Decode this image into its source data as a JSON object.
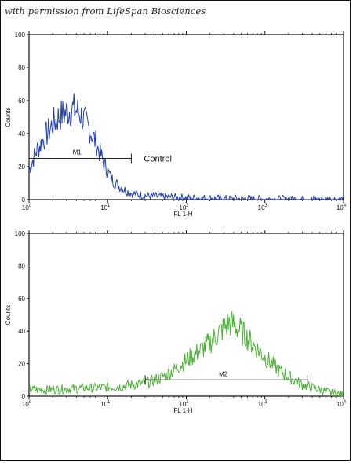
{
  "credit_text": "with permission from LifeSpan Biosciences",
  "chart_data": [
    {
      "type": "line",
      "title": "",
      "xlabel": "FL 1-H",
      "ylabel": "Counts",
      "xscale": "log",
      "xlim": [
        1,
        10000
      ],
      "ylim": [
        0,
        100
      ],
      "x_ticks": [
        {
          "base": "10",
          "exp": "0"
        },
        {
          "base": "10",
          "exp": "1"
        },
        {
          "base": "10",
          "exp": "2"
        },
        {
          "base": "10",
          "exp": "3"
        },
        {
          "base": "10",
          "exp": "4"
        }
      ],
      "y_ticks": [
        "0",
        "20",
        "40",
        "60",
        "80",
        "100"
      ],
      "line_color": "#1f3ea8",
      "series": [
        {
          "x": [
            1.0,
            1.2,
            1.5,
            1.8,
            2.0,
            2.5,
            3.0,
            3.5,
            4.0,
            4.5,
            5.0,
            6.0,
            7.0,
            8.0,
            9.0,
            10.0,
            12.0,
            15.0,
            18.0,
            20.0,
            25.0,
            30.0,
            40.0,
            50.0,
            70.0,
            100.0,
            150.0,
            200.0,
            300.0,
            500.0,
            1000.0,
            2000.0,
            5000.0,
            10000.0
          ],
          "y": [
            18,
            28,
            36,
            42,
            46,
            51,
            53,
            55,
            54,
            52,
            48,
            42,
            35,
            28,
            22,
            17,
            11,
            7,
            5,
            4,
            3,
            2.5,
            2,
            1.8,
            1.5,
            1.2,
            1.0,
            0.8,
            0.6,
            0.5,
            0.4,
            0.3,
            0.2,
            0.2
          ]
        }
      ],
      "marker": {
        "label": "M1",
        "x_start": 1.0,
        "x_end": 20.0,
        "y": 25
      },
      "annotation": "Control"
    },
    {
      "type": "line",
      "title": "",
      "xlabel": "FL 1-H",
      "ylabel": "Counts",
      "xscale": "log",
      "xlim": [
        1,
        10000
      ],
      "ylim": [
        0,
        100
      ],
      "x_ticks": [
        {
          "base": "10",
          "exp": "0"
        },
        {
          "base": "10",
          "exp": "1"
        },
        {
          "base": "10",
          "exp": "2"
        },
        {
          "base": "10",
          "exp": "3"
        },
        {
          "base": "10",
          "exp": "4"
        }
      ],
      "y_ticks": [
        "0",
        "20",
        "40",
        "60",
        "80",
        "100"
      ],
      "line_color": "#4bb336",
      "series": [
        {
          "x": [
            1.0,
            1.5,
            2.0,
            3.0,
            5.0,
            7.0,
            10.0,
            15.0,
            20.0,
            30.0,
            40.0,
            50.0,
            70.0,
            100.0,
            150.0,
            200.0,
            250.0,
            300.0,
            350.0,
            400.0,
            500.0,
            700.0,
            1000.0,
            1500.0,
            2000.0,
            3000.0,
            5000.0,
            7000.0,
            10000.0
          ],
          "y": [
            4,
            4,
            4,
            4.5,
            5,
            5,
            5.5,
            6,
            7,
            8,
            10,
            12,
            16,
            22,
            28,
            33,
            38,
            42,
            45,
            44,
            40,
            32,
            24,
            16,
            12,
            7,
            4,
            2,
            1
          ]
        }
      ],
      "marker": {
        "label": "M2",
        "x_start": 30.0,
        "x_end": 3500.0,
        "y": 10
      }
    }
  ]
}
